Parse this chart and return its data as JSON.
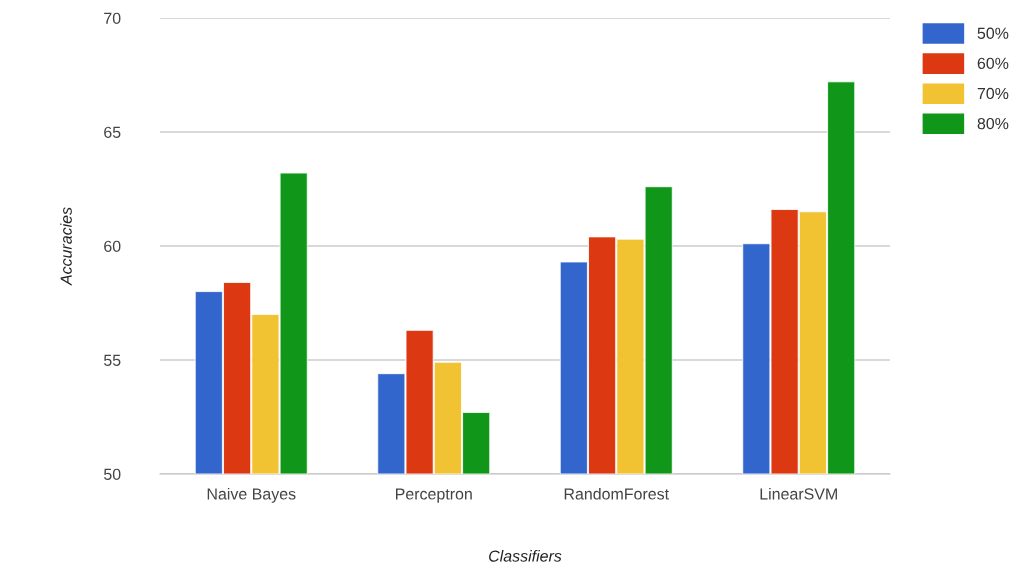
{
  "chart_data": {
    "type": "bar",
    "xlabel": "Classifiers",
    "ylabel": "Accuracies",
    "categories": [
      "Naive Bayes",
      "Perceptron",
      "RandomForest",
      "LinearSVM"
    ],
    "series": [
      {
        "name": "50%",
        "color": "#3366cc",
        "values": [
          58.0,
          54.4,
          59.3,
          60.1
        ]
      },
      {
        "name": "60%",
        "color": "#dc3912",
        "values": [
          58.4,
          56.3,
          60.4,
          61.6
        ]
      },
      {
        "name": "70%",
        "color": "#f1c232",
        "values": [
          57.0,
          54.9,
          60.3,
          61.5
        ]
      },
      {
        "name": "80%",
        "color": "#109618",
        "values": [
          63.2,
          52.7,
          62.6,
          67.2
        ]
      }
    ],
    "ylim": [
      50,
      70
    ],
    "yticks": [
      50,
      55,
      60,
      65,
      70
    ],
    "grid": "y",
    "legend": "top right"
  }
}
